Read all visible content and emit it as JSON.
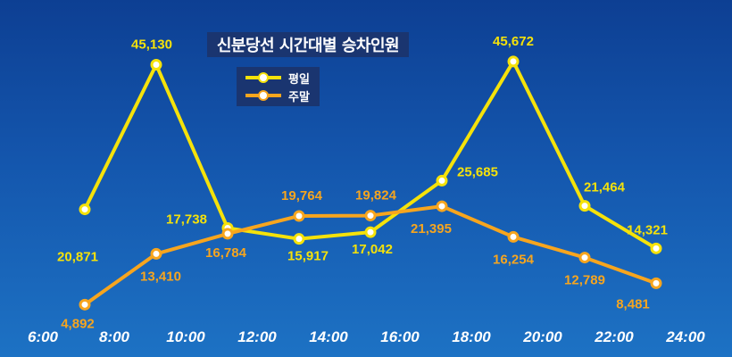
{
  "chart_data": {
    "type": "line",
    "title": "신분당선 시간대별 승차인원",
    "x_ticks": [
      "6:00",
      "8:00",
      "10:00",
      "12:00",
      "14:00",
      "16:00",
      "18:00",
      "20:00",
      "22:00",
      "24:00"
    ],
    "xlim": [
      6,
      24
    ],
    "ylim": [
      0,
      50000
    ],
    "grid": false,
    "legend_position": "top-center",
    "series": [
      {
        "name": "평일",
        "color": "#f5e20a",
        "x": [
          7,
          9,
          11,
          13,
          15,
          17,
          19,
          21,
          23
        ],
        "values": [
          20871,
          45130,
          17738,
          15917,
          17042,
          25685,
          45672,
          21464,
          14321
        ],
        "labels": [
          "20,871",
          "45,130",
          "17,738",
          "15,917",
          "17,042",
          "25,685",
          "45,672",
          "21,464",
          "14,321"
        ]
      },
      {
        "name": "주말",
        "color": "#f7a51e",
        "x": [
          7,
          9,
          11,
          13,
          15,
          17,
          19,
          21,
          23
        ],
        "values": [
          4892,
          13410,
          16784,
          19764,
          19824,
          21395,
          16254,
          12789,
          8481
        ],
        "labels": [
          "4,892",
          "13,410",
          "16,784",
          "19,764",
          "19,824",
          "21,395",
          "16,254",
          "12,789",
          "8,481"
        ]
      }
    ]
  }
}
